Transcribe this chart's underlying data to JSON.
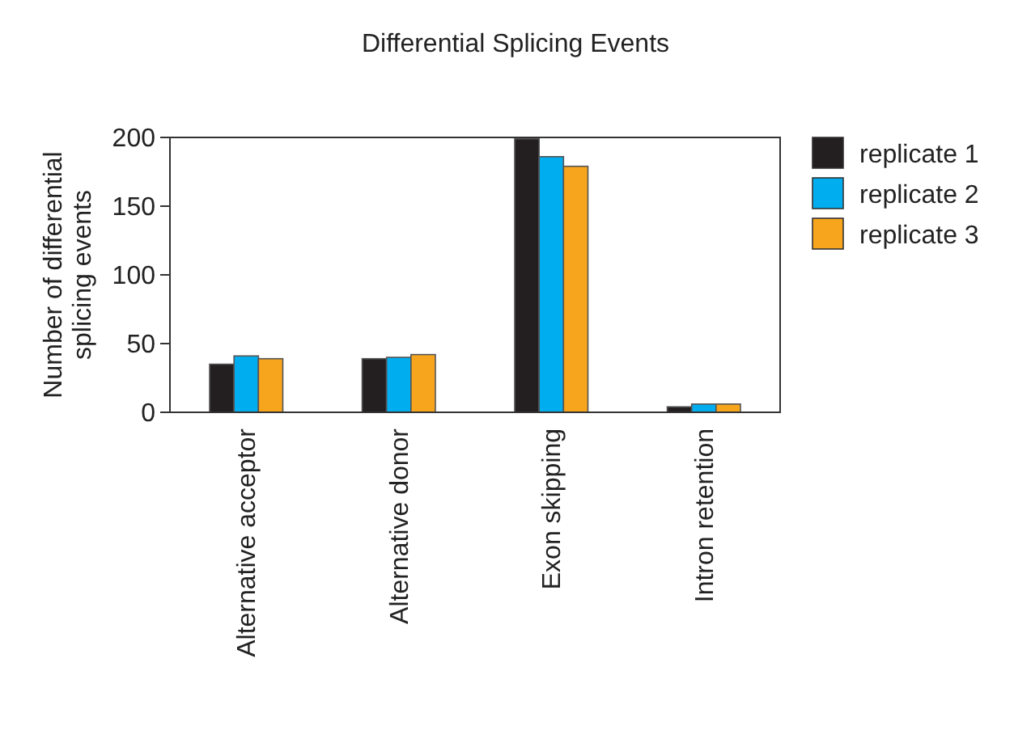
{
  "chart_data": {
    "type": "bar",
    "title": "Differential Splicing Events",
    "ylabel": "Number of differential\nsplicing events",
    "categories": [
      "Alternative acceptor",
      "Alternative donor",
      "Exon skipping",
      "Intron retention"
    ],
    "series": [
      {
        "name": "replicate 1",
        "color": "#231f20",
        "values": [
          35,
          39,
          199,
          4
        ]
      },
      {
        "name": "replicate 2",
        "color": "#00aeef",
        "values": [
          41,
          40,
          186,
          6
        ]
      },
      {
        "name": "replicate 3",
        "color": "#f7a51c",
        "values": [
          39,
          42,
          179,
          6
        ]
      }
    ],
    "ylim": [
      0,
      200
    ],
    "yticks": [
      0,
      50,
      100,
      150,
      200
    ],
    "grid": false,
    "legend": "right"
  }
}
